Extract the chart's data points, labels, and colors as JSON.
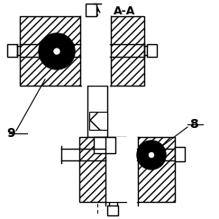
{
  "title": "A-A",
  "label_9": "9",
  "label_8": "8",
  "bg_color": "#ffffff",
  "line_color": "#000000",
  "figsize": [
    2.43,
    2.43
  ],
  "dpi": 100
}
